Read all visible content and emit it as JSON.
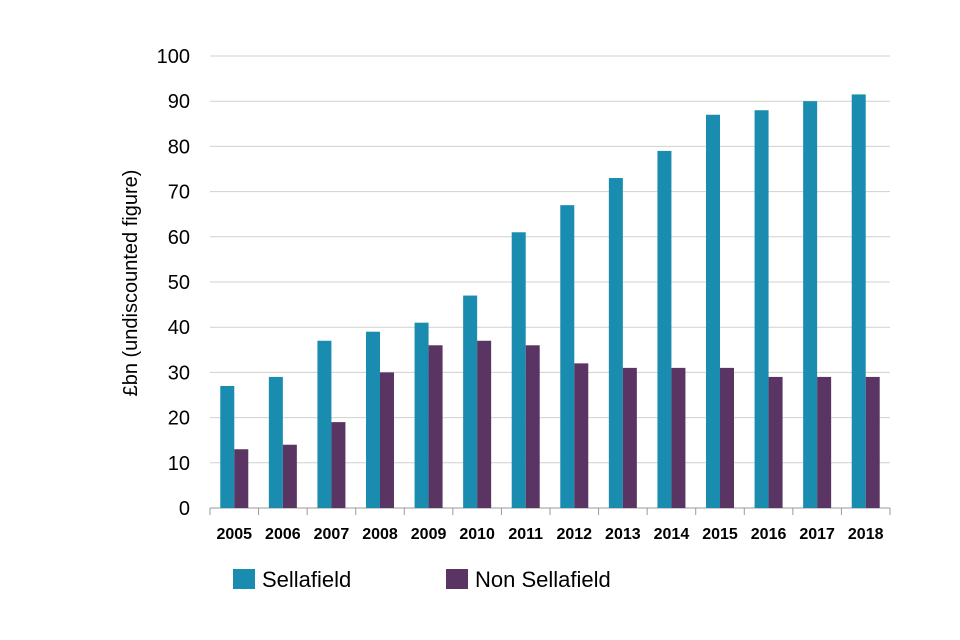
{
  "chart_data": {
    "type": "bar",
    "title": "",
    "xlabel": "",
    "ylabel": "£bn (undiscounted figure)",
    "ylim": [
      0,
      100
    ],
    "yticks": [
      0,
      10,
      20,
      30,
      40,
      50,
      60,
      70,
      80,
      90,
      100
    ],
    "grid": true,
    "legend_position": "bottom",
    "categories": [
      "2005",
      "2006",
      "2007",
      "2008",
      "2009",
      "2010",
      "2011",
      "2012",
      "2013",
      "2014",
      "2015",
      "2016",
      "2017",
      "2018"
    ],
    "series": [
      {
        "name": "Sellafield",
        "color": "#1a8cb0",
        "values": [
          27,
          29,
          37,
          39,
          41,
          47,
          61,
          67,
          73,
          79,
          87,
          88,
          90,
          91.5
        ]
      },
      {
        "name": "Non Sellafield",
        "color": "#5a3563",
        "values": [
          13,
          14,
          19,
          30,
          36,
          37,
          36,
          32,
          31,
          31,
          31,
          29,
          29,
          29
        ]
      }
    ]
  }
}
